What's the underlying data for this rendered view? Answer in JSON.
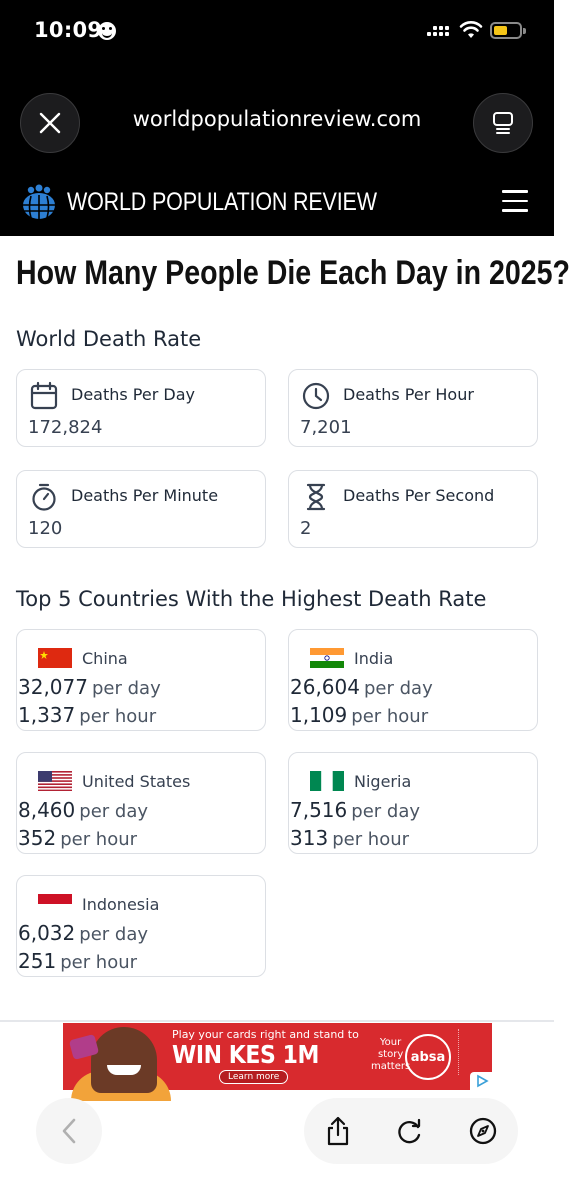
{
  "status_bar": {
    "time": "10:09"
  },
  "browser": {
    "url": "worldpopulationreview.com"
  },
  "site": {
    "name": "WORLD POPULATION REVIEW"
  },
  "page": {
    "title": "How Many People Die Each Day in 2025?"
  },
  "world_death_rate": {
    "heading": "World Death Rate",
    "cards": [
      {
        "label": "Deaths Per Day",
        "value": "172,824",
        "icon": "calendar-icon"
      },
      {
        "label": "Deaths Per Hour",
        "value": "7,201",
        "icon": "clock-icon"
      },
      {
        "label": "Deaths Per Minute",
        "value": "120",
        "icon": "stopwatch-icon"
      },
      {
        "label": "Deaths Per Second",
        "value": "2",
        "icon": "hourglass-icon"
      }
    ]
  },
  "top_countries": {
    "heading": "Top 5 Countries With the Highest Death Rate",
    "per_day_label": "per day",
    "per_hour_label": "per hour",
    "countries": [
      {
        "name": "China",
        "per_day": "32,077",
        "per_hour": "1,337",
        "flag": "china-flag-icon"
      },
      {
        "name": "India",
        "per_day": "26,604",
        "per_hour": "1,109",
        "flag": "india-flag-icon"
      },
      {
        "name": "United States",
        "per_day": "8,460",
        "per_hour": "352",
        "flag": "us-flag-icon"
      },
      {
        "name": "Nigeria",
        "per_day": "7,516",
        "per_hour": "313",
        "flag": "nigeria-flag-icon"
      },
      {
        "name": "Indonesia",
        "per_day": "6,032",
        "per_hour": "251",
        "flag": "indonesia-flag-icon"
      }
    ]
  },
  "ad": {
    "headline": "Play your cards right and stand to",
    "big": "WIN KES 1M",
    "learn_more": "Learn more",
    "story_line1": "Your",
    "story_line2": "story",
    "story_line3": "matters",
    "brand": "absa"
  },
  "colors": {
    "header_bg": "#000000",
    "card_border": "#dcdfe4",
    "ad_red": "#d82a2e",
    "logo_blue": "#2d7fd3"
  }
}
